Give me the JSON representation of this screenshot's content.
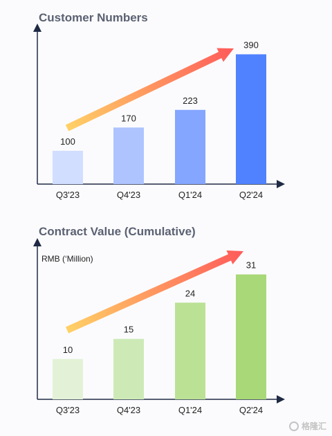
{
  "chart_data": [
    {
      "type": "bar",
      "title": "Customer Numbers",
      "ylabel": "",
      "xlabel": "",
      "categories": [
        "Q3'23",
        "Q4'23",
        "Q1'24",
        "Q2'24"
      ],
      "values": [
        100,
        170,
        223,
        390
      ],
      "ylim": [
        0,
        470
      ],
      "bar_colors": [
        "#d2deff",
        "#aec4ff",
        "#84a6ff",
        "#5082ff"
      ],
      "grid": false,
      "annotations": [
        "trend-arrow"
      ]
    },
    {
      "type": "bar",
      "title": "Contract Value (Cumulative)",
      "ylabel": "RMB (‘Million)",
      "xlabel": "",
      "categories": [
        "Q3'23",
        "Q4'23",
        "Q1'24",
        "Q2'24"
      ],
      "values": [
        10,
        15,
        24,
        31
      ],
      "ylim": [
        0,
        39
      ],
      "bar_colors": [
        "#e3f2d6",
        "#cdeab6",
        "#bbe195",
        "#a8d877"
      ],
      "grid": false,
      "annotations": [
        "trend-arrow"
      ]
    }
  ],
  "colors": {
    "arrow_start": "#ffd166",
    "arrow_end": "#ff5a5a",
    "axis": "#1f2a44"
  },
  "watermark": {
    "text": "格隆汇",
    "logo": "G"
  }
}
